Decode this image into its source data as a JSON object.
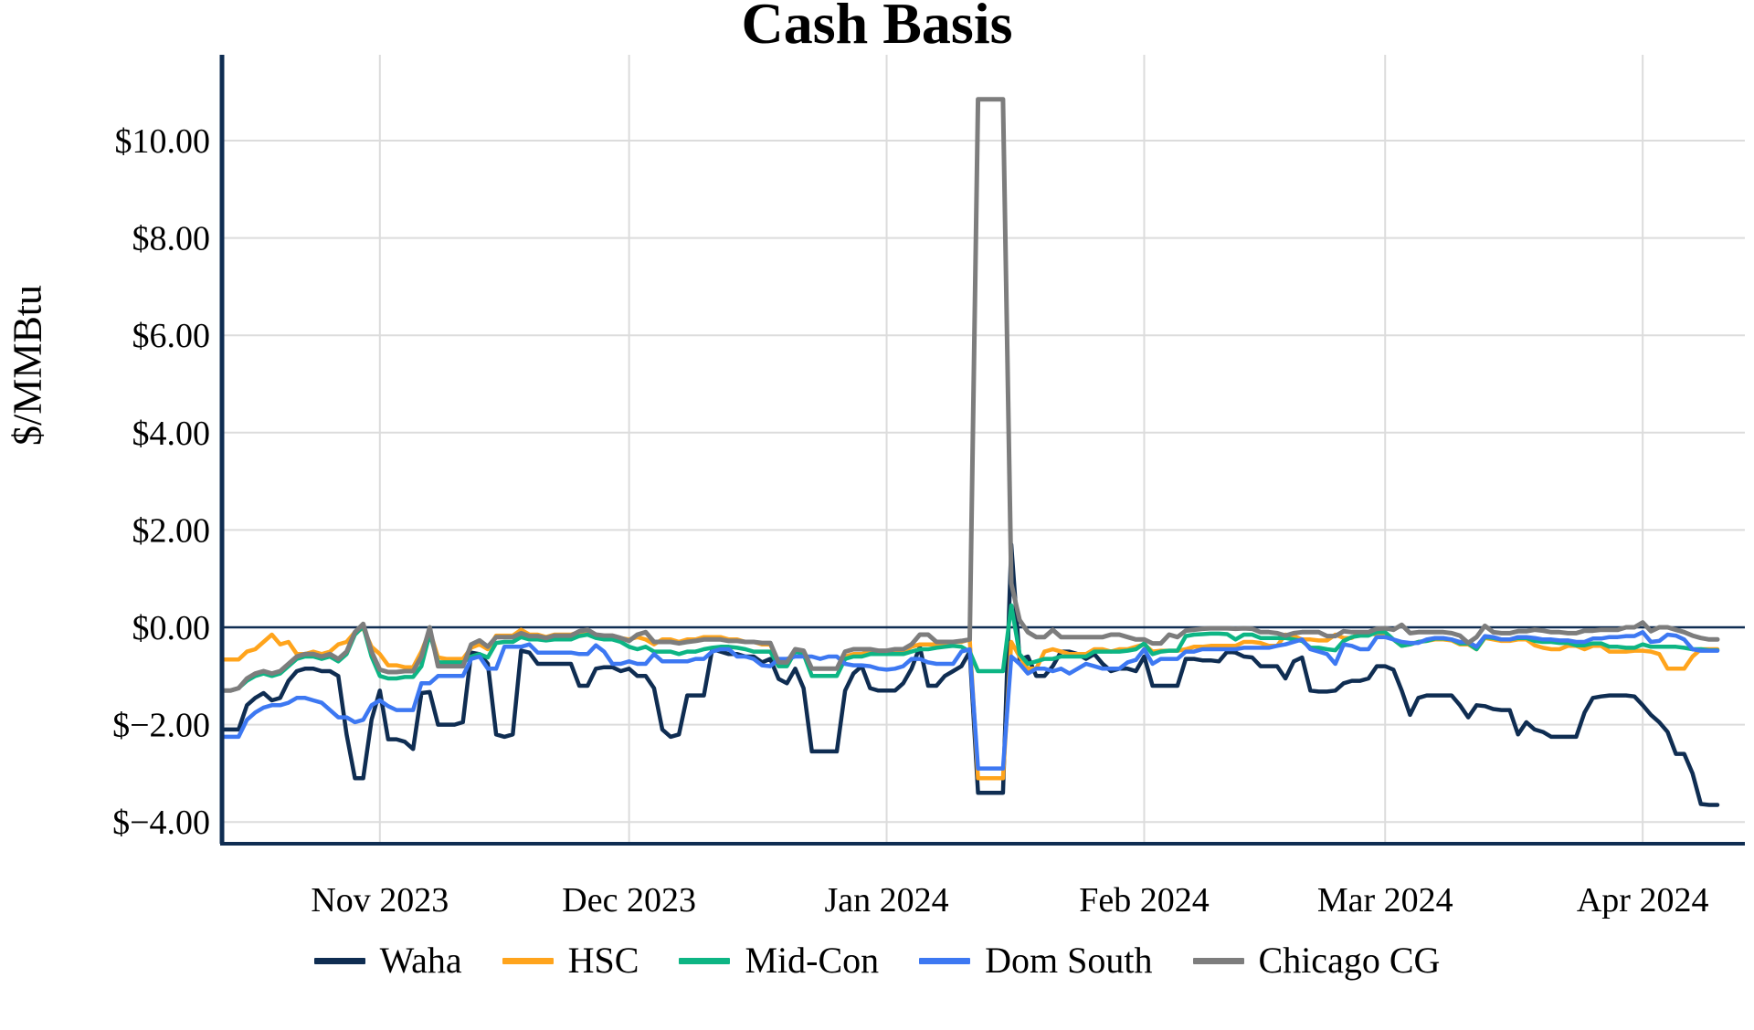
{
  "chart_data": {
    "type": "line",
    "title": "Cash Basis",
    "ylabel": "$/MMBtu",
    "x_start_date": "2023-10-13",
    "x_end_date": "2024-04-10",
    "days_total": 180,
    "grid": true,
    "legend_position": "bottom-center",
    "zero_line": true,
    "axis_color": "#0f2d52",
    "grid_color": "#dcdcdc",
    "ylim": [
      -4.6,
      11.8
    ],
    "y_ticks": [
      {
        "label": "$10.00",
        "value": 10
      },
      {
        "label": "$8.00",
        "value": 8
      },
      {
        "label": "$6.00",
        "value": 6
      },
      {
        "label": "$4.00",
        "value": 4
      },
      {
        "label": "$2.00",
        "value": 2
      },
      {
        "label": "$0.00",
        "value": 0
      },
      {
        "label": "$−2.00",
        "value": -2
      },
      {
        "label": "$−4.00",
        "value": -4
      }
    ],
    "x_ticks": [
      {
        "label": "Nov 2023",
        "day": 19
      },
      {
        "label": "Dec 2023",
        "day": 49
      },
      {
        "label": "Jan 2024",
        "day": 80
      },
      {
        "label": "Feb 2024",
        "day": 111
      },
      {
        "label": "Mar 2024",
        "day": 140
      },
      {
        "label": "Apr 2024",
        "day": 171
      }
    ],
    "series": [
      {
        "name": "Waha",
        "color": "#0f2d52",
        "values": [
          -2.1,
          -2.1,
          -2.1,
          -1.6,
          -1.45,
          -1.35,
          -1.5,
          -1.45,
          -1.1,
          -0.9,
          -0.85,
          -0.85,
          -0.9,
          -0.9,
          -1.0,
          -2.2,
          -3.1,
          -3.1,
          -1.9,
          -1.3,
          -2.3,
          -2.3,
          -2.35,
          -2.5,
          -1.35,
          -1.33,
          -2.0,
          -2.0,
          -2.0,
          -1.95,
          -0.52,
          -0.55,
          -0.75,
          -2.2,
          -2.25,
          -2.2,
          -0.48,
          -0.52,
          -0.75,
          -0.75,
          -0.75,
          -0.75,
          -0.75,
          -1.2,
          -1.2,
          -0.85,
          -0.82,
          -0.82,
          -0.9,
          -0.85,
          -1.0,
          -1.0,
          -1.25,
          -2.1,
          -2.25,
          -2.2,
          -1.4,
          -1.4,
          -1.4,
          -0.45,
          -0.5,
          -0.55,
          -0.55,
          -0.6,
          -0.6,
          -0.72,
          -0.65,
          -1.06,
          -1.15,
          -0.85,
          -1.25,
          -2.55,
          -2.55,
          -2.55,
          -2.55,
          -1.3,
          -0.95,
          -0.8,
          -1.25,
          -1.3,
          -1.3,
          -1.3,
          -1.15,
          -0.85,
          -0.4,
          -1.2,
          -1.2,
          -1.0,
          -0.9,
          -0.8,
          -0.5,
          -3.4,
          -3.4,
          -3.4,
          -3.4,
          1.7,
          -0.66,
          -0.6,
          -1.0,
          -1.0,
          -0.8,
          -0.5,
          -0.5,
          -0.55,
          -0.65,
          -0.55,
          -0.75,
          -0.9,
          -0.85,
          -0.85,
          -0.9,
          -0.6,
          -1.2,
          -1.2,
          -1.2,
          -1.2,
          -0.65,
          -0.65,
          -0.68,
          -0.68,
          -0.7,
          -0.5,
          -0.52,
          -0.6,
          -0.62,
          -0.8,
          -0.8,
          -0.8,
          -1.05,
          -0.7,
          -0.62,
          -1.3,
          -1.32,
          -1.32,
          -1.3,
          -1.15,
          -1.1,
          -1.1,
          -1.05,
          -0.8,
          -0.8,
          -0.87,
          -1.3,
          -1.8,
          -1.45,
          -1.4,
          -1.4,
          -1.4,
          -1.4,
          -1.6,
          -1.85,
          -1.6,
          -1.62,
          -1.68,
          -1.7,
          -1.7,
          -2.2,
          -1.95,
          -2.1,
          -2.15,
          -2.25,
          -2.25,
          -2.25,
          -2.25,
          -1.75,
          -1.45,
          -1.42,
          -1.4,
          -1.4,
          -1.4,
          -1.42,
          -1.6,
          -1.8,
          -1.95,
          -2.15,
          -2.6,
          -2.6,
          -3.0,
          -3.63,
          -3.65,
          -3.65
        ]
      },
      {
        "name": "HSC",
        "color": "#ffa41c",
        "values": [
          -0.66,
          -0.66,
          -0.66,
          -0.5,
          -0.45,
          -0.3,
          -0.15,
          -0.35,
          -0.3,
          -0.55,
          -0.55,
          -0.5,
          -0.55,
          -0.5,
          -0.35,
          -0.3,
          -0.1,
          -0.02,
          -0.4,
          -0.55,
          -0.78,
          -0.78,
          -0.82,
          -0.82,
          -0.5,
          -0.07,
          -0.62,
          -0.65,
          -0.65,
          -0.65,
          -0.42,
          -0.35,
          -0.45,
          -0.17,
          -0.17,
          -0.17,
          -0.05,
          -0.15,
          -0.15,
          -0.2,
          -0.15,
          -0.15,
          -0.15,
          -0.1,
          -0.1,
          -0.2,
          -0.17,
          -0.17,
          -0.22,
          -0.25,
          -0.2,
          -0.25,
          -0.35,
          -0.25,
          -0.25,
          -0.3,
          -0.25,
          -0.25,
          -0.2,
          -0.2,
          -0.2,
          -0.25,
          -0.25,
          -0.3,
          -0.3,
          -0.35,
          -0.35,
          -0.75,
          -0.75,
          -0.45,
          -0.5,
          -0.85,
          -0.85,
          -0.85,
          -0.85,
          -0.6,
          -0.55,
          -0.55,
          -0.5,
          -0.55,
          -0.55,
          -0.5,
          -0.5,
          -0.4,
          -0.35,
          -0.35,
          -0.35,
          -0.32,
          -0.3,
          -0.3,
          -0.25,
          -3.1,
          -3.1,
          -3.1,
          -3.1,
          -0.3,
          -0.6,
          -0.85,
          -0.85,
          -0.5,
          -0.45,
          -0.5,
          -0.55,
          -0.55,
          -0.55,
          -0.45,
          -0.45,
          -0.5,
          -0.45,
          -0.45,
          -0.4,
          -0.35,
          -0.5,
          -0.48,
          -0.48,
          -0.48,
          -0.45,
          -0.4,
          -0.4,
          -0.38,
          -0.38,
          -0.38,
          -0.38,
          -0.3,
          -0.3,
          -0.32,
          -0.38,
          -0.38,
          -0.15,
          -0.18,
          -0.25,
          -0.25,
          -0.27,
          -0.27,
          -0.15,
          -0.22,
          -0.22,
          -0.1,
          -0.12,
          -0.15,
          -0.15,
          -0.25,
          -0.38,
          -0.35,
          -0.3,
          -0.28,
          -0.25,
          -0.25,
          -0.27,
          -0.35,
          -0.35,
          -0.45,
          -0.22,
          -0.25,
          -0.28,
          -0.28,
          -0.25,
          -0.25,
          -0.37,
          -0.42,
          -0.45,
          -0.45,
          -0.38,
          -0.38,
          -0.45,
          -0.38,
          -0.38,
          -0.5,
          -0.5,
          -0.5,
          -0.48,
          -0.48,
          -0.5,
          -0.55,
          -0.85,
          -0.85,
          -0.85,
          -0.6,
          -0.45,
          -0.45,
          -0.45
        ]
      },
      {
        "name": "Mid-Con",
        "color": "#0db584",
        "values": [
          -1.3,
          -1.3,
          -1.25,
          -1.1,
          -1.0,
          -0.95,
          -1.0,
          -0.95,
          -0.8,
          -0.65,
          -0.6,
          -0.6,
          -0.65,
          -0.6,
          -0.7,
          -0.55,
          -0.15,
          0.02,
          -0.6,
          -1.0,
          -1.05,
          -1.05,
          -1.02,
          -1.02,
          -0.8,
          -0.13,
          -0.72,
          -0.72,
          -0.72,
          -0.72,
          -0.6,
          -0.55,
          -0.62,
          -0.32,
          -0.3,
          -0.3,
          -0.2,
          -0.25,
          -0.25,
          -0.27,
          -0.25,
          -0.25,
          -0.25,
          -0.18,
          -0.15,
          -0.22,
          -0.25,
          -0.25,
          -0.3,
          -0.4,
          -0.45,
          -0.4,
          -0.5,
          -0.5,
          -0.5,
          -0.55,
          -0.5,
          -0.5,
          -0.45,
          -0.42,
          -0.4,
          -0.4,
          -0.42,
          -0.45,
          -0.5,
          -0.5,
          -0.5,
          -0.8,
          -0.8,
          -0.5,
          -0.55,
          -1.0,
          -1.0,
          -1.0,
          -1.0,
          -0.65,
          -0.6,
          -0.6,
          -0.55,
          -0.55,
          -0.55,
          -0.55,
          -0.55,
          -0.5,
          -0.45,
          -0.45,
          -0.42,
          -0.4,
          -0.38,
          -0.4,
          -0.5,
          -0.9,
          -0.9,
          -0.9,
          -0.9,
          0.45,
          -0.55,
          -0.75,
          -0.7,
          -0.65,
          -0.65,
          -0.6,
          -0.6,
          -0.6,
          -0.6,
          -0.5,
          -0.5,
          -0.5,
          -0.5,
          -0.48,
          -0.45,
          -0.33,
          -0.55,
          -0.5,
          -0.48,
          -0.48,
          -0.18,
          -0.15,
          -0.14,
          -0.13,
          -0.13,
          -0.14,
          -0.25,
          -0.15,
          -0.15,
          -0.22,
          -0.22,
          -0.22,
          -0.22,
          -0.25,
          -0.28,
          -0.42,
          -0.42,
          -0.45,
          -0.47,
          -0.28,
          -0.2,
          -0.17,
          -0.17,
          -0.1,
          -0.1,
          -0.25,
          -0.38,
          -0.35,
          -0.3,
          -0.28,
          -0.23,
          -0.23,
          -0.25,
          -0.33,
          -0.33,
          -0.45,
          -0.2,
          -0.22,
          -0.25,
          -0.25,
          -0.22,
          -0.22,
          -0.28,
          -0.3,
          -0.3,
          -0.32,
          -0.32,
          -0.37,
          -0.37,
          -0.33,
          -0.33,
          -0.4,
          -0.4,
          -0.42,
          -0.42,
          -0.35,
          -0.4,
          -0.4,
          -0.4,
          -0.4,
          -0.42,
          -0.45,
          -0.45,
          -0.47,
          -0.47
        ]
      },
      {
        "name": "Dom South",
        "color": "#3d78f2",
        "values": [
          -2.25,
          -2.25,
          -2.25,
          -1.9,
          -1.75,
          -1.65,
          -1.6,
          -1.6,
          -1.55,
          -1.45,
          -1.45,
          -1.5,
          -1.55,
          -1.7,
          -1.85,
          -1.85,
          -1.95,
          -1.9,
          -1.6,
          -1.5,
          -1.62,
          -1.7,
          -1.7,
          -1.7,
          -1.15,
          -1.15,
          -1.0,
          -1.0,
          -1.0,
          -1.0,
          -0.65,
          -0.6,
          -0.85,
          -0.85,
          -0.4,
          -0.4,
          -0.4,
          -0.35,
          -0.52,
          -0.52,
          -0.52,
          -0.52,
          -0.52,
          -0.55,
          -0.55,
          -0.37,
          -0.5,
          -0.75,
          -0.75,
          -0.7,
          -0.75,
          -0.75,
          -0.55,
          -0.7,
          -0.7,
          -0.7,
          -0.7,
          -0.65,
          -0.65,
          -0.5,
          -0.45,
          -0.45,
          -0.6,
          -0.6,
          -0.65,
          -0.78,
          -0.8,
          -0.65,
          -0.65,
          -0.6,
          -0.6,
          -0.6,
          -0.65,
          -0.6,
          -0.6,
          -0.75,
          -0.78,
          -0.78,
          -0.8,
          -0.85,
          -0.87,
          -0.85,
          -0.8,
          -0.65,
          -0.65,
          -0.72,
          -0.75,
          -0.75,
          -0.75,
          -0.5,
          -0.45,
          -2.9,
          -2.9,
          -2.9,
          -2.9,
          -0.6,
          -0.75,
          -0.95,
          -0.85,
          -0.85,
          -0.9,
          -0.85,
          -0.95,
          -0.85,
          -0.75,
          -0.8,
          -0.85,
          -0.85,
          -0.85,
          -0.72,
          -0.67,
          -0.45,
          -0.75,
          -0.65,
          -0.65,
          -0.65,
          -0.5,
          -0.5,
          -0.45,
          -0.45,
          -0.45,
          -0.45,
          -0.45,
          -0.42,
          -0.42,
          -0.42,
          -0.42,
          -0.38,
          -0.35,
          -0.3,
          -0.25,
          -0.45,
          -0.5,
          -0.55,
          -0.75,
          -0.35,
          -0.38,
          -0.45,
          -0.45,
          -0.2,
          -0.2,
          -0.25,
          -0.3,
          -0.32,
          -0.32,
          -0.25,
          -0.22,
          -0.22,
          -0.25,
          -0.3,
          -0.3,
          -0.4,
          -0.18,
          -0.2,
          -0.25,
          -0.25,
          -0.2,
          -0.2,
          -0.22,
          -0.25,
          -0.25,
          -0.27,
          -0.27,
          -0.3,
          -0.3,
          -0.23,
          -0.23,
          -0.2,
          -0.2,
          -0.18,
          -0.18,
          -0.1,
          -0.3,
          -0.28,
          -0.15,
          -0.17,
          -0.25,
          -0.45,
          -0.48,
          -0.48,
          -0.48
        ]
      },
      {
        "name": "Chicago CG",
        "color": "#7d7d7d",
        "values": [
          -1.3,
          -1.3,
          -1.25,
          -1.05,
          -0.95,
          -0.9,
          -0.95,
          -0.9,
          -0.75,
          -0.6,
          -0.55,
          -0.55,
          -0.6,
          -0.55,
          -0.65,
          -0.5,
          -0.1,
          0.07,
          -0.5,
          -0.87,
          -0.92,
          -0.92,
          -0.9,
          -0.9,
          -0.6,
          0.0,
          -0.8,
          -0.8,
          -0.8,
          -0.8,
          -0.35,
          -0.27,
          -0.4,
          -0.2,
          -0.2,
          -0.2,
          -0.12,
          -0.18,
          -0.18,
          -0.22,
          -0.17,
          -0.17,
          -0.17,
          -0.08,
          -0.05,
          -0.15,
          -0.17,
          -0.17,
          -0.22,
          -0.28,
          -0.15,
          -0.1,
          -0.3,
          -0.3,
          -0.3,
          -0.33,
          -0.3,
          -0.28,
          -0.25,
          -0.25,
          -0.25,
          -0.28,
          -0.28,
          -0.3,
          -0.3,
          -0.32,
          -0.32,
          -0.72,
          -0.72,
          -0.45,
          -0.48,
          -0.85,
          -0.85,
          -0.85,
          -0.85,
          -0.5,
          -0.45,
          -0.45,
          -0.45,
          -0.48,
          -0.48,
          -0.45,
          -0.45,
          -0.35,
          -0.15,
          -0.15,
          -0.3,
          -0.3,
          -0.3,
          -0.28,
          -0.25,
          10.85,
          10.85,
          10.85,
          10.85,
          0.9,
          0.15,
          -0.1,
          -0.2,
          -0.2,
          -0.05,
          -0.2,
          -0.2,
          -0.2,
          -0.2,
          -0.2,
          -0.2,
          -0.15,
          -0.15,
          -0.2,
          -0.25,
          -0.25,
          -0.33,
          -0.33,
          -0.15,
          -0.2,
          -0.07,
          -0.05,
          -0.03,
          -0.02,
          -0.02,
          -0.02,
          -0.03,
          -0.02,
          -0.03,
          -0.1,
          -0.1,
          -0.12,
          -0.17,
          -0.12,
          -0.1,
          -0.1,
          -0.1,
          -0.18,
          -0.18,
          -0.08,
          -0.1,
          -0.1,
          -0.1,
          -0.03,
          -0.02,
          -0.05,
          0.05,
          -0.12,
          -0.1,
          -0.1,
          -0.1,
          -0.1,
          -0.12,
          -0.17,
          -0.32,
          -0.2,
          0.03,
          -0.1,
          -0.12,
          -0.12,
          -0.08,
          -0.08,
          -0.05,
          -0.07,
          -0.1,
          -0.1,
          -0.12,
          -0.12,
          -0.07,
          -0.07,
          -0.05,
          -0.05,
          -0.05,
          0.0,
          0.0,
          0.1,
          -0.08,
          0.0,
          0.0,
          -0.05,
          -0.1,
          -0.17,
          -0.22,
          -0.25,
          -0.25
        ]
      }
    ]
  }
}
